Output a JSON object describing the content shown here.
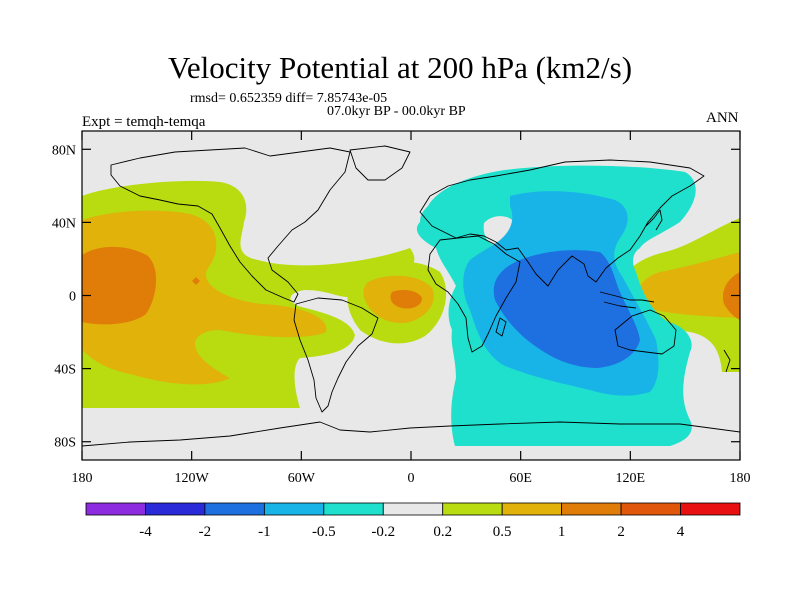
{
  "figure": {
    "title": "Velocity Potential at 200 hPa (km2/s)",
    "stats": "rmsd= 0.652359 diff= 7.85743e-05",
    "period": "07.0kyr BP - 00.0kyr BP",
    "experiment": "Expt = temqh-temqa",
    "season": "ANN"
  },
  "map": {
    "projection": "cylindrical-equidistant",
    "lon_range": [
      -180,
      180
    ],
    "lat_range": [
      -90,
      90
    ],
    "lat_ticks": [
      {
        "value": 80,
        "label": "80N"
      },
      {
        "value": 40,
        "label": "40N"
      },
      {
        "value": 0,
        "label": "0"
      },
      {
        "value": -40,
        "label": "40S"
      },
      {
        "value": -80,
        "label": "80S"
      }
    ],
    "lon_ticks": [
      {
        "value": -180,
        "label": "180"
      },
      {
        "value": -120,
        "label": "120W"
      },
      {
        "value": -60,
        "label": "60W"
      },
      {
        "value": 0,
        "label": "0"
      },
      {
        "value": 60,
        "label": "60E"
      },
      {
        "value": 120,
        "label": "120E"
      },
      {
        "value": 180,
        "label": "180"
      }
    ]
  },
  "colorbar": {
    "colors": [
      "#8c2be0",
      "#2a2ad8",
      "#1e70e0",
      "#18b4e8",
      "#1ee0cc",
      "#e8e8e8",
      "#b8dc10",
      "#e0b20a",
      "#e07c08",
      "#e0560a",
      "#e81010"
    ],
    "labels": [
      "-4",
      "-2",
      "-1",
      "-0.5",
      "-0.2",
      "0.2",
      "0.5",
      "1",
      "2",
      "4"
    ]
  }
}
